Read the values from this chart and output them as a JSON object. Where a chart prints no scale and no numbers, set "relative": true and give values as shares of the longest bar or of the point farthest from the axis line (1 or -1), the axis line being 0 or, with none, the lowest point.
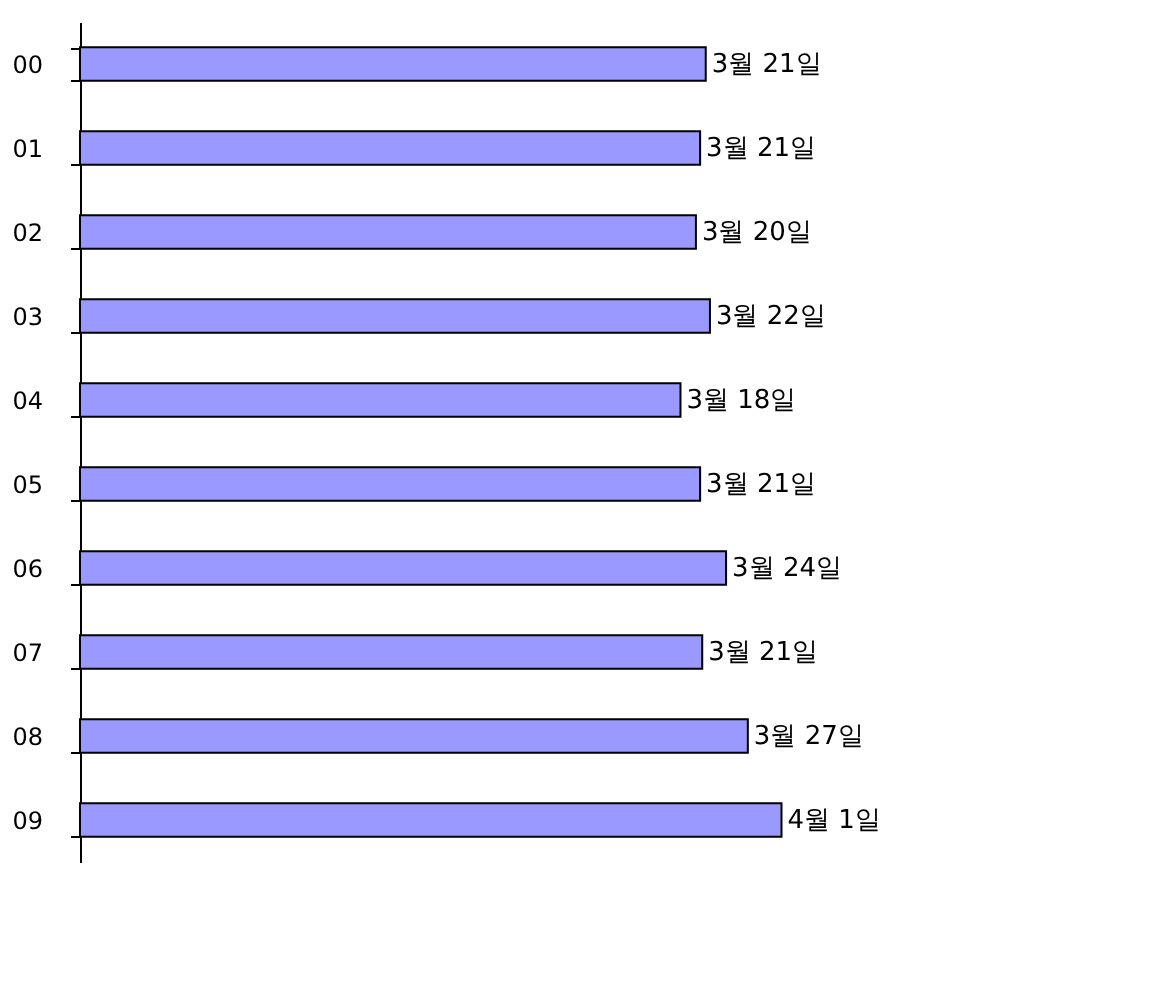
{
  "chart_data": {
    "type": "bar",
    "orientation": "horizontal",
    "relative": true,
    "categories": [
      "00",
      "01",
      "02",
      "03",
      "04",
      "05",
      "06",
      "07",
      "08",
      "09"
    ],
    "values": [
      0.892,
      0.884,
      0.878,
      0.898,
      0.856,
      0.884,
      0.921,
      0.887,
      0.952,
      1
    ],
    "annotations": [
      {
        "text": "3월 21일",
        "x": 0.892,
        "y": "00"
      },
      {
        "text": "3월 21일",
        "x": 0.884,
        "y": "01"
      },
      {
        "text": "3월 20일",
        "x": 0.878,
        "y": "02"
      },
      {
        "text": "3월 22일",
        "x": 0.898,
        "y": "03"
      },
      {
        "text": "3월 18일",
        "x": 0.856,
        "y": "04"
      },
      {
        "text": "3월 21일",
        "x": 0.884,
        "y": "05"
      },
      {
        "text": "3월 24일",
        "x": 0.921,
        "y": "06"
      },
      {
        "text": "3월 21일",
        "x": 0.887,
        "y": "07"
      },
      {
        "text": "3월 27일",
        "x": 0.952,
        "y": "08"
      },
      {
        "text": "4월 1일",
        "x": 1,
        "y": "09"
      }
    ],
    "tick_labels": "y",
    "color": "#9999ff",
    "grid": false
  }
}
